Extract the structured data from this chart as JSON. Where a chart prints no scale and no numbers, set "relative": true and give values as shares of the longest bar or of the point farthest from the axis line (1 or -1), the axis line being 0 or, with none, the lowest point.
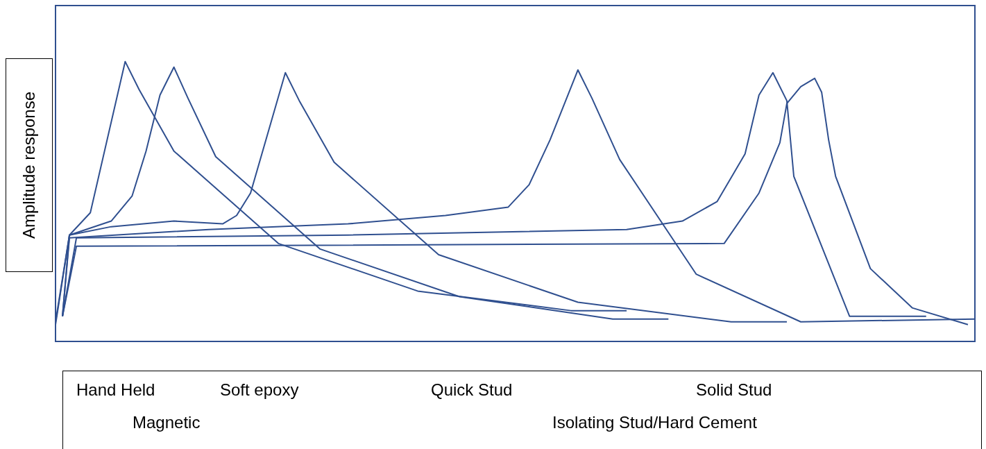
{
  "chart_data": {
    "type": "line",
    "ylabel": "Amplitude response",
    "relative": true,
    "tick_labels": false,
    "marker": "none",
    "line_style": "solid",
    "annotations": [
      "Hand Held",
      "Magnetic",
      "Soft epoxy",
      "Quick Stud",
      "Solid Stud",
      "Isolating Stud/Hard Cement"
    ],
    "categories": [
      null,
      null,
      null,
      null,
      null,
      null,
      null,
      null,
      null,
      null,
      null,
      null,
      null,
      null,
      null,
      null,
      null,
      null,
      null,
      null,
      null,
      null,
      null,
      null,
      null,
      null,
      null,
      null,
      null,
      null,
      null,
      null,
      null,
      null,
      null,
      null,
      null,
      null,
      null,
      null,
      null,
      null,
      null,
      null,
      null,
      null,
      null,
      null,
      null,
      null,
      null,
      null,
      null,
      null,
      null,
      null,
      null,
      null,
      null,
      null,
      null,
      null,
      null,
      null,
      null,
      null,
      null,
      null,
      null,
      null,
      null,
      null,
      null,
      null,
      null,
      null,
      null,
      null,
      null,
      null,
      null,
      null,
      null,
      null,
      null,
      null,
      null,
      null,
      null,
      null,
      null,
      null,
      null,
      null,
      null,
      null,
      null,
      null,
      null,
      null,
      null,
      null,
      null,
      null,
      null,
      null,
      null,
      null,
      null,
      null,
      null,
      null,
      null,
      null,
      null,
      null,
      null,
      null,
      null,
      null,
      null,
      null,
      null,
      null,
      null,
      null,
      null,
      null,
      null,
      null,
      null,
      null,
      null
    ],
    "series": [
      {
        "color": "#2f4f8f",
        "values": [
          0.07,
          null,
          0.38,
          null,
          null,
          0.46,
          null,
          null,
          null,
          null,
          1.0,
          null,
          0.9,
          null,
          null,
          null,
          null,
          0.68,
          null,
          null,
          null,
          null,
          null,
          null,
          null,
          null,
          null,
          null,
          null,
          null,
          null,
          null,
          0.35,
          null,
          null,
          null,
          null,
          null,
          null,
          null,
          null,
          null,
          null,
          null,
          null,
          null,
          null,
          null,
          null,
          null,
          null,
          null,
          0.18,
          null,
          null,
          null,
          null,
          null,
          null,
          null,
          null,
          null,
          null,
          null,
          null,
          null,
          null,
          null,
          null,
          null,
          null,
          null,
          null,
          null,
          0.11,
          null,
          null,
          null,
          null,
          null,
          null,
          null,
          0.11,
          null,
          null,
          null,
          null,
          null,
          null,
          null,
          null,
          null,
          null,
          null,
          null,
          null,
          null,
          null,
          null,
          null,
          null,
          null,
          null,
          null,
          null,
          null,
          null,
          null,
          null,
          null,
          null,
          null,
          null,
          null,
          null,
          null,
          null,
          null,
          null,
          null,
          null,
          null,
          null,
          null,
          null,
          null,
          null,
          null,
          null,
          null,
          null,
          null,
          null
        ]
      },
      {
        "color": "#2f4f8f",
        "values": [
          0.06,
          null,
          0.38,
          null,
          null,
          null,
          null,
          null,
          0.43,
          null,
          null,
          0.52,
          null,
          0.68,
          null,
          0.88,
          null,
          0.98,
          null,
          0.87,
          null,
          null,
          null,
          0.66,
          null,
          null,
          null,
          null,
          null,
          null,
          null,
          null,
          null,
          null,
          null,
          null,
          null,
          null,
          0.33,
          null,
          null,
          null,
          null,
          null,
          null,
          null,
          null,
          null,
          null,
          null,
          null,
          null,
          null,
          null,
          null,
          null,
          null,
          null,
          0.16,
          null,
          null,
          null,
          null,
          null,
          null,
          null,
          null,
          null,
          null,
          null,
          null,
          null,
          null,
          null,
          null,
          null,
          null,
          null,
          null,
          null,
          0.08,
          null,
          null,
          null,
          null,
          null,
          null,
          null,
          0.08,
          null,
          null,
          null,
          null,
          null,
          null,
          null,
          null,
          null,
          null,
          null,
          null,
          null,
          null,
          null,
          null,
          null,
          null,
          null,
          null,
          null,
          null,
          null,
          null,
          null,
          null,
          null,
          null,
          null,
          null,
          null,
          null,
          null,
          null,
          null,
          null,
          null,
          null,
          null,
          null,
          null,
          null,
          null,
          null
        ]
      },
      {
        "color": "#2f4f8f",
        "values": [
          null,
          0.09,
          0.38,
          null,
          null,
          null,
          null,
          null,
          0.41,
          null,
          null,
          null,
          null,
          null,
          null,
          null,
          null,
          0.43,
          null,
          null,
          null,
          null,
          null,
          null,
          0.42,
          null,
          0.45,
          null,
          0.53,
          null,
          null,
          null,
          null,
          0.96,
          null,
          0.86,
          null,
          null,
          null,
          null,
          0.64,
          null,
          null,
          null,
          null,
          null,
          null,
          null,
          null,
          null,
          null,
          null,
          null,
          null,
          null,
          0.31,
          null,
          null,
          null,
          null,
          null,
          null,
          null,
          null,
          null,
          null,
          null,
          null,
          null,
          null,
          null,
          null,
          null,
          null,
          null,
          0.14,
          null,
          null,
          null,
          null,
          null,
          null,
          null,
          null,
          null,
          null,
          null,
          null,
          null,
          null,
          null,
          null,
          null,
          null,
          null,
          null,
          null,
          0.07,
          null,
          null,
          null,
          null,
          null,
          null,
          null,
          0.07,
          null,
          null,
          null,
          null,
          null,
          null,
          null,
          null,
          null,
          null,
          null,
          null,
          null,
          null,
          null,
          null,
          null,
          null,
          null,
          null,
          null,
          null,
          null,
          null,
          null,
          null,
          null
        ]
      },
      {
        "color": "#2f4f8f",
        "values": [
          null,
          0.09,
          0.37,
          null,
          null,
          null,
          null,
          null,
          null,
          null,
          null,
          null,
          null,
          null,
          null,
          null,
          null,
          null,
          null,
          null,
          null,
          null,
          0.4,
          null,
          null,
          null,
          null,
          null,
          null,
          null,
          null,
          null,
          null,
          null,
          null,
          null,
          null,
          null,
          null,
          null,
          null,
          null,
          0.42,
          null,
          null,
          null,
          null,
          null,
          null,
          null,
          null,
          null,
          null,
          null,
          null,
          null,
          0.45,
          null,
          null,
          null,
          null,
          null,
          null,
          null,
          null,
          0.48,
          null,
          null,
          0.56,
          null,
          null,
          0.72,
          null,
          null,
          null,
          0.97,
          null,
          0.87,
          null,
          null,
          null,
          0.65,
          null,
          null,
          null,
          null,
          null,
          null,
          null,
          null,
          null,
          null,
          0.24,
          null,
          null,
          null,
          null,
          null,
          null,
          null,
          null,
          null,
          null,
          null,
          null,
          null,
          null,
          0.07,
          null,
          null,
          null,
          null,
          null,
          null,
          null,
          null,
          null,
          null,
          null,
          null,
          null,
          null,
          null,
          null,
          null,
          null,
          null,
          null,
          null,
          null,
          null,
          null,
          0.08
        ]
      },
      {
        "color": "#2f4f8f",
        "values": [
          null,
          0.09,
          null,
          0.37,
          null,
          null,
          null,
          null,
          null,
          null,
          null,
          null,
          null,
          null,
          null,
          null,
          null,
          null,
          null,
          null,
          null,
          null,
          null,
          null,
          null,
          null,
          null,
          null,
          null,
          null,
          null,
          null,
          null,
          null,
          null,
          null,
          null,
          null,
          null,
          null,
          null,
          null,
          0.38,
          null,
          null,
          null,
          null,
          null,
          null,
          null,
          null,
          null,
          null,
          null,
          null,
          null,
          null,
          null,
          null,
          null,
          null,
          null,
          null,
          null,
          null,
          null,
          null,
          null,
          null,
          null,
          null,
          null,
          null,
          null,
          null,
          null,
          null,
          null,
          null,
          null,
          null,
          null,
          0.4,
          null,
          null,
          null,
          null,
          null,
          null,
          null,
          0.43,
          null,
          null,
          null,
          null,
          0.5,
          null,
          null,
          null,
          0.67,
          null,
          0.88,
          null,
          0.96,
          null,
          0.86,
          0.59,
          null,
          null,
          null,
          null,
          null,
          null,
          null,
          0.09,
          null,
          null,
          null,
          null,
          null,
          null,
          null,
          null,
          null,
          null,
          0.09,
          null,
          null,
          null,
          null,
          null,
          null,
          null
        ]
      },
      {
        "color": "#2f4f8f",
        "values": [
          null,
          0.09,
          null,
          0.34,
          null,
          null,
          null,
          null,
          null,
          null,
          null,
          null,
          null,
          null,
          null,
          null,
          null,
          null,
          null,
          null,
          null,
          null,
          null,
          null,
          null,
          null,
          null,
          null,
          null,
          null,
          null,
          null,
          null,
          null,
          null,
          null,
          null,
          null,
          null,
          null,
          null,
          null,
          null,
          null,
          null,
          null,
          null,
          null,
          null,
          null,
          null,
          null,
          null,
          null,
          null,
          null,
          null,
          null,
          null,
          null,
          null,
          null,
          null,
          null,
          null,
          null,
          null,
          null,
          null,
          null,
          null,
          null,
          null,
          null,
          null,
          null,
          null,
          null,
          null,
          null,
          null,
          null,
          null,
          null,
          null,
          null,
          null,
          null,
          null,
          null,
          null,
          null,
          null,
          null,
          null,
          null,
          0.35,
          null,
          null,
          null,
          null,
          0.53,
          null,
          null,
          0.71,
          0.85,
          null,
          0.91,
          null,
          0.94,
          0.89,
          0.72,
          0.59,
          null,
          null,
          null,
          null,
          0.26,
          null,
          null,
          null,
          null,
          null,
          0.12,
          null,
          null,
          null,
          null,
          null,
          null,
          null,
          0.06,
          null
        ]
      }
    ]
  }
}
